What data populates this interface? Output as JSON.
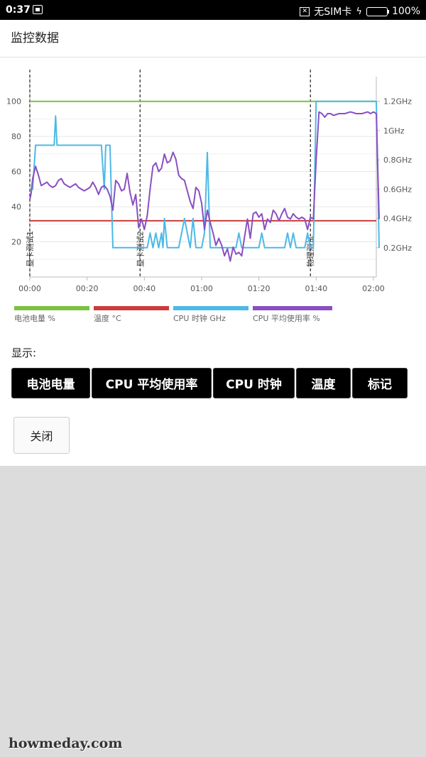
{
  "statusbar": {
    "time": "0:37",
    "sim": "无SIM卡",
    "battery": "100%"
  },
  "header": {
    "title": "监控数据"
  },
  "legend": [
    {
      "label": "电池电量 %",
      "color": "#7dc142"
    },
    {
      "label": "温度 °C",
      "color": "#cc3b3b"
    },
    {
      "label": "CPU 时钟 GHz",
      "color": "#4cb9e6"
    },
    {
      "label": "CPU 平均使用率 %",
      "color": "#8a4fc2"
    }
  ],
  "show_label": "显示:",
  "buttons": [
    {
      "label": "电池电量"
    },
    {
      "label": "CPU 平均使用率"
    },
    {
      "label": "CPU 时钟"
    },
    {
      "label": "温度"
    },
    {
      "label": "标记"
    }
  ],
  "close_label": "关闭",
  "watermark": "howmeday.com",
  "chart_data": {
    "type": "line",
    "x_ticks": [
      "00:00",
      "00:20",
      "00:40",
      "01:00",
      "01:20",
      "01:40",
      "02:00"
    ],
    "x_range_min": [
      0,
      121
    ],
    "y_left": {
      "ticks": [
        20,
        40,
        60,
        80,
        100
      ],
      "range": [
        0,
        110
      ]
    },
    "y_right": {
      "ticks": [
        "0.2GHz",
        "0.4GHz",
        "0.6GHz",
        "0.8GHz",
        "1GHz",
        "1.2GHz"
      ],
      "range_ghz": [
        0,
        1.32
      ]
    },
    "markers": [
      {
        "x": 0,
        "label": "显卡测试1"
      },
      {
        "x": 38.5,
        "label": "显卡测试2"
      },
      {
        "x": 98,
        "label": "物理测试"
      }
    ],
    "series": [
      {
        "name": "电池电量 %",
        "axis": "left",
        "values": [
          [
            0,
            100
          ],
          [
            121,
            100
          ]
        ]
      },
      {
        "name": "温度 °C",
        "axis": "left",
        "values": [
          [
            0,
            32
          ],
          [
            121,
            32
          ]
        ]
      },
      {
        "name": "CPU 时钟 GHz",
        "axis": "right",
        "values": [
          [
            0,
            0.6
          ],
          [
            1,
            0.6
          ],
          [
            2,
            0.9
          ],
          [
            6,
            0.9
          ],
          [
            8.5,
            0.9
          ],
          [
            9,
            1.1
          ],
          [
            9.5,
            0.9
          ],
          [
            12,
            0.9
          ],
          [
            25,
            0.9
          ],
          [
            26,
            0.6
          ],
          [
            26.5,
            0.9
          ],
          [
            28,
            0.9
          ],
          [
            29,
            0.2
          ],
          [
            38,
            0.2
          ],
          [
            39,
            0.2
          ],
          [
            41,
            0.2
          ],
          [
            42,
            0.3
          ],
          [
            43,
            0.2
          ],
          [
            44,
            0.3
          ],
          [
            45,
            0.2
          ],
          [
            46,
            0.3
          ],
          [
            46.5,
            0.2
          ],
          [
            47,
            0.4
          ],
          [
            48,
            0.2
          ],
          [
            52,
            0.2
          ],
          [
            53,
            0.3
          ],
          [
            54,
            0.4
          ],
          [
            55,
            0.3
          ],
          [
            56,
            0.2
          ],
          [
            57,
            0.4
          ],
          [
            58,
            0.2
          ],
          [
            60,
            0.2
          ],
          [
            61,
            0.3
          ],
          [
            62,
            0.85
          ],
          [
            63,
            0.2
          ],
          [
            65,
            0.2
          ],
          [
            72,
            0.2
          ],
          [
            73,
            0.3
          ],
          [
            74,
            0.2
          ],
          [
            75,
            0.2
          ],
          [
            80,
            0.2
          ],
          [
            81,
            0.3
          ],
          [
            82,
            0.2
          ],
          [
            89,
            0.2
          ],
          [
            90,
            0.3
          ],
          [
            91,
            0.2
          ],
          [
            92,
            0.3
          ],
          [
            93,
            0.2
          ],
          [
            96,
            0.2
          ],
          [
            97,
            0.3
          ],
          [
            98,
            0.2
          ],
          [
            99,
            0.2
          ],
          [
            100,
            1.2
          ],
          [
            110,
            1.2
          ],
          [
            121,
            1.2
          ],
          [
            122,
            0.2
          ]
        ]
      },
      {
        "name": "CPU 平均使用率 %",
        "axis": "left",
        "values": [
          [
            0,
            44
          ],
          [
            0.5,
            48
          ],
          [
            1,
            56
          ],
          [
            2,
            63
          ],
          [
            3,
            58
          ],
          [
            4,
            52
          ],
          [
            5,
            53
          ],
          [
            6,
            54
          ],
          [
            7,
            52
          ],
          [
            8,
            51
          ],
          [
            9,
            52
          ],
          [
            10,
            55
          ],
          [
            11,
            56
          ],
          [
            12,
            53
          ],
          [
            13,
            52
          ],
          [
            14,
            51
          ],
          [
            15,
            52
          ],
          [
            16,
            53
          ],
          [
            17,
            51
          ],
          [
            18,
            50
          ],
          [
            19,
            49
          ],
          [
            20,
            50
          ],
          [
            21,
            51
          ],
          [
            22,
            54
          ],
          [
            23,
            51
          ],
          [
            24,
            47
          ],
          [
            25,
            51
          ],
          [
            26,
            52
          ],
          [
            27,
            50
          ],
          [
            28,
            46
          ],
          [
            29,
            38
          ],
          [
            30,
            55
          ],
          [
            31,
            53
          ],
          [
            32,
            49
          ],
          [
            33,
            50
          ],
          [
            34,
            59
          ],
          [
            35,
            48
          ],
          [
            36,
            41
          ],
          [
            37,
            47
          ],
          [
            38,
            28
          ],
          [
            39,
            33
          ],
          [
            40,
            27
          ],
          [
            41,
            35
          ],
          [
            42,
            50
          ],
          [
            43,
            63
          ],
          [
            44,
            65
          ],
          [
            45,
            60
          ],
          [
            46,
            62
          ],
          [
            47,
            70
          ],
          [
            48,
            65
          ],
          [
            49,
            66
          ],
          [
            50,
            71
          ],
          [
            51,
            67
          ],
          [
            52,
            58
          ],
          [
            53,
            56
          ],
          [
            54,
            55
          ],
          [
            55,
            49
          ],
          [
            56,
            43
          ],
          [
            57,
            39
          ],
          [
            58,
            51
          ],
          [
            59,
            49
          ],
          [
            60,
            42
          ],
          [
            61,
            27
          ],
          [
            62,
            38
          ],
          [
            63,
            31
          ],
          [
            64,
            25
          ],
          [
            65,
            18
          ],
          [
            66,
            22
          ],
          [
            67,
            18
          ],
          [
            68,
            12
          ],
          [
            69,
            16
          ],
          [
            70,
            9
          ],
          [
            71,
            17
          ],
          [
            72,
            13
          ],
          [
            73,
            14
          ],
          [
            74,
            12
          ],
          [
            75,
            23
          ],
          [
            76,
            33
          ],
          [
            77,
            22
          ],
          [
            78,
            36
          ],
          [
            79,
            37
          ],
          [
            80,
            34
          ],
          [
            81,
            36
          ],
          [
            82,
            27
          ],
          [
            83,
            33
          ],
          [
            84,
            31
          ],
          [
            85,
            38
          ],
          [
            86,
            36
          ],
          [
            87,
            32
          ],
          [
            88,
            36
          ],
          [
            89,
            39
          ],
          [
            90,
            34
          ],
          [
            91,
            33
          ],
          [
            92,
            36
          ],
          [
            93,
            34
          ],
          [
            94,
            33
          ],
          [
            95,
            34
          ],
          [
            96,
            33
          ],
          [
            97,
            27
          ],
          [
            98,
            34
          ],
          [
            99,
            33
          ],
          [
            100,
            67
          ],
          [
            101,
            94
          ],
          [
            102,
            93
          ],
          [
            103,
            91
          ],
          [
            104,
            93
          ],
          [
            105,
            93
          ],
          [
            106,
            92
          ],
          [
            108,
            93
          ],
          [
            110,
            93
          ],
          [
            112,
            94
          ],
          [
            114,
            93
          ],
          [
            116,
            93
          ],
          [
            118,
            94
          ],
          [
            119,
            93
          ],
          [
            120,
            94
          ],
          [
            121,
            93
          ],
          [
            122,
            33
          ]
        ]
      }
    ]
  }
}
